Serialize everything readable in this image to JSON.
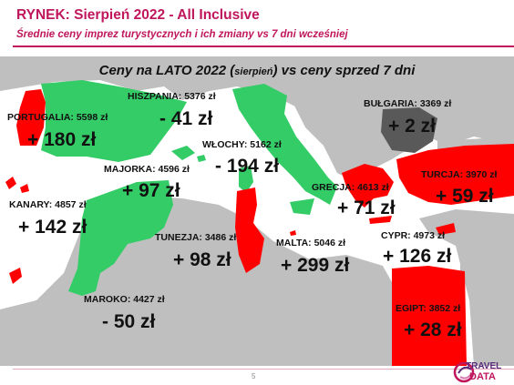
{
  "header": {
    "title": "RYNEK: Sierpień 2022 - All Inclusive",
    "subtitle": "Średnie ceny imprez turystycznych i ich zmiany vs 7 dni wcześniej"
  },
  "map_title": {
    "main_before": "Ceny na LATO 2022 (",
    "month": "sierpień",
    "main_after": ") vs ceny sprzed 7 dni"
  },
  "colors": {
    "increase": "#ff0000",
    "decrease": "#33cc66",
    "neutral": "#595959",
    "land": "#bfbfbf",
    "brand": "#c0165c"
  },
  "destinations": [
    {
      "id": "portugalia",
      "label": "PORTUGALIA:  5598 zł",
      "change": "+ 180 zł"
    },
    {
      "id": "hiszpania",
      "label": "HISZPANIA: 5376 zł",
      "change": "- 41 zł"
    },
    {
      "id": "majorka",
      "label": "MAJORKA: 4596 zł",
      "change": "+ 97 zł"
    },
    {
      "id": "kanary",
      "label": "KANARY: 4857 zł",
      "change": "+ 142 zł"
    },
    {
      "id": "wlochy",
      "label": "WŁOCHY: 5162 zł",
      "change": "- 194 zł"
    },
    {
      "id": "bulgaria",
      "label": "BUŁGARIA: 3369 zł",
      "change": "+ 2 zł"
    },
    {
      "id": "grecja",
      "label": "GRECJA: 4613 zł",
      "change": "+ 71 zł"
    },
    {
      "id": "turcja",
      "label": "TURCJA: 3970 zł",
      "change": "+ 59 zł"
    },
    {
      "id": "tunezja",
      "label": "TUNEZJA: 3486 zł",
      "change": "+ 98 zł"
    },
    {
      "id": "malta",
      "label": "MALTA: 5046 zł",
      "change": "+ 299 zł"
    },
    {
      "id": "cypr",
      "label": "CYPR: 4973 zł",
      "change": "+ 126 zł"
    },
    {
      "id": "maroko",
      "label": "MAROKO: 4427 zł",
      "change": "- 50 zł"
    },
    {
      "id": "egipt",
      "label": "EGIPT: 3852 zł",
      "change": "+ 28 zł"
    }
  ],
  "footer": {
    "page_number": "5",
    "logo_line1": "TRAVEL",
    "logo_line2": "DATA"
  }
}
